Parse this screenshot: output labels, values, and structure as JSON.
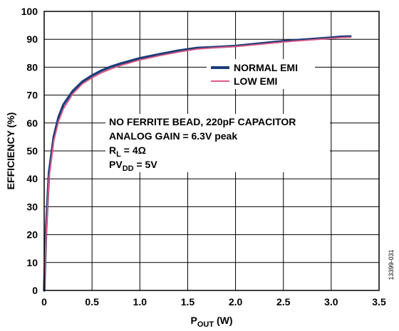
{
  "chart_data": {
    "type": "line",
    "xlabel_main": "P",
    "xlabel_sub": "OUT",
    "xlabel_unit": " (W)",
    "ylabel": "EFFICIENCY (%)",
    "xlim": [
      0,
      3.5
    ],
    "ylim": [
      0,
      100
    ],
    "x_ticks": [
      "0",
      "0.5",
      "1.0",
      "1.5",
      "2.0",
      "2.5",
      "3.0",
      "3.5"
    ],
    "y_ticks": [
      "0",
      "10",
      "20",
      "30",
      "40",
      "50",
      "60",
      "70",
      "80",
      "90",
      "100"
    ],
    "grid": true,
    "legend_position": "upper-middle",
    "series": [
      {
        "name": "NORMAL EMI",
        "color": "#1c3d7a",
        "x": [
          0,
          0.02,
          0.05,
          0.1,
          0.15,
          0.2,
          0.3,
          0.4,
          0.5,
          0.6,
          0.7,
          0.8,
          1.0,
          1.2,
          1.4,
          1.6,
          1.8,
          2.0,
          2.2,
          2.4,
          2.6,
          2.8,
          3.0,
          3.1,
          3.2
        ],
        "y": [
          0,
          22,
          42,
          55,
          62,
          66.5,
          71.5,
          74.8,
          77,
          78.8,
          80.2,
          81.3,
          83.2,
          84.6,
          85.9,
          86.9,
          87.2,
          87.6,
          88.3,
          89,
          89.6,
          90.1,
          90.6,
          90.9,
          91
        ]
      },
      {
        "name": "LOW EMI",
        "color": "#e05a84",
        "x": [
          0,
          0.02,
          0.05,
          0.1,
          0.15,
          0.2,
          0.3,
          0.4,
          0.5,
          0.6,
          0.7,
          0.8,
          1.0,
          1.2,
          1.4,
          1.6,
          1.8,
          2.0,
          2.2,
          2.4,
          2.6,
          2.8,
          3.0,
          3.1,
          3.2
        ],
        "y": [
          0,
          20,
          40,
          53.5,
          60.5,
          65,
          70.5,
          74,
          76.2,
          78,
          79.4,
          80.6,
          82.6,
          84.1,
          85.4,
          86.5,
          87,
          87.4,
          88,
          88.7,
          89.3,
          89.8,
          90.3,
          90.6,
          90.7
        ]
      }
    ],
    "annotations": {
      "line1": "NO FERRITE BEAD, 220pF CAPACITOR",
      "line2": "ANALOG GAIN = 6.3V peak",
      "line3_main": "R",
      "line3_sub": "L",
      "line3_rest": " = 4Ω",
      "line4_main": "PV",
      "line4_sub": "DD",
      "line4_rest": " = 5V"
    },
    "figure_id": "13399-031"
  }
}
